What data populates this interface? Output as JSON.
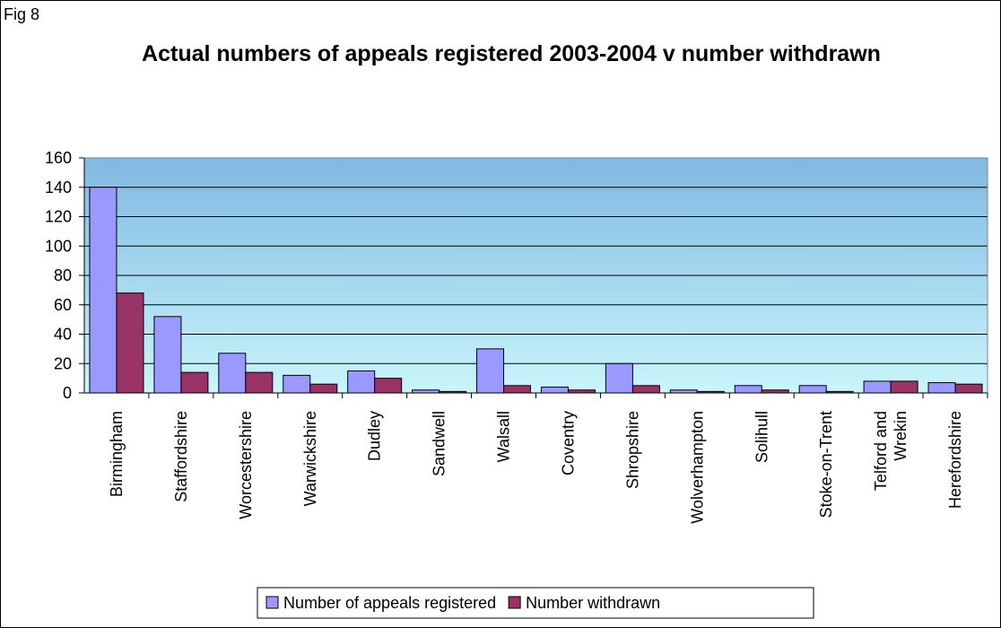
{
  "figure_label": "Fig 8",
  "chart_data": {
    "type": "bar",
    "title": "Actual numbers of appeals registered 2003-2004 v number withdrawn",
    "xlabel": "",
    "ylabel": "",
    "ylim": [
      0,
      160
    ],
    "yticks": [
      0,
      20,
      40,
      60,
      80,
      100,
      120,
      140,
      160
    ],
    "grid": true,
    "legend_position": "bottom",
    "categories": [
      "Birmingham",
      "Staffordshire",
      "Worcestershire",
      "Warwickshire",
      "Dudley",
      "Sandwell",
      "Walsall",
      "Coventry",
      "Shropshire",
      "Wolverhampton",
      "Solihull",
      "Stoke-on-Trent",
      "Telford and Wrekin",
      "Herefordshire"
    ],
    "series": [
      {
        "name": "Number of appeals registered",
        "color": "#9999ff",
        "values": [
          140,
          52,
          27,
          12,
          15,
          2,
          30,
          4,
          20,
          2,
          5,
          5,
          8,
          7
        ]
      },
      {
        "name": "Number withdrawn",
        "color": "#993366",
        "values": [
          68,
          14,
          14,
          6,
          10,
          1,
          5,
          2,
          5,
          1,
          2,
          1,
          8,
          6
        ]
      }
    ]
  }
}
